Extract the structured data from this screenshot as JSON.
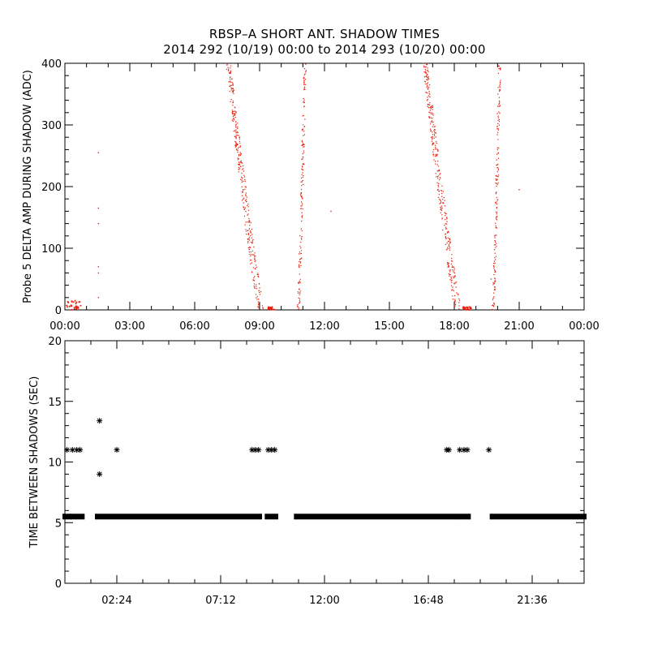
{
  "figure": {
    "title": "RBSP–A SHORT ANT. SHADOW TIMES",
    "subtitle": "2014 292 (10/19) 00:00 to 2014 293 (10/20) 00:00",
    "colors": {
      "background": "#ffffff",
      "axes": "#000000",
      "points_top": "#e8220f",
      "points_bottom": "#000000"
    }
  },
  "chart_data": [
    {
      "type": "scatter",
      "ylabel": "Probe 5 DELTA AMP DURING SHADOW (ADC)",
      "xlim": [
        0,
        24
      ],
      "ylim": [
        0,
        400
      ],
      "yticks": [
        "0",
        "100",
        "200",
        "300",
        "400"
      ],
      "xticks": [
        "00:00",
        "03:00",
        "06:00",
        "09:00",
        "12:00",
        "15:00",
        "18:00",
        "21:00",
        "00:00"
      ],
      "marker": "dot",
      "color": "#e8220f",
      "clusters": [
        {
          "desc": "near-zero early",
          "x": [
            0.0,
            0.75
          ],
          "y": [
            0,
            15
          ]
        },
        {
          "desc": "isolated",
          "points": [
            [
              1.55,
              255
            ],
            [
              1.55,
              165
            ],
            [
              1.55,
              140
            ],
            [
              1.55,
              70
            ],
            [
              1.55,
              60
            ],
            [
              1.55,
              20
            ]
          ]
        },
        {
          "desc": "descending branch",
          "x_at_400": 7.5,
          "x_at_0": 9.0
        },
        {
          "desc": "upper branch",
          "x_at_400": 7.6,
          "x_at_0": 9.2
        },
        {
          "desc": "near-zero",
          "x": [
            9.4,
            9.7
          ],
          "y": [
            0,
            5
          ]
        },
        {
          "desc": "rising branch",
          "x_at_0": 10.8,
          "x_at_400": 11.1
        },
        {
          "desc": "descending branch",
          "x_at_400": 16.6,
          "x_at_0": 18.1
        },
        {
          "desc": "upper branch",
          "x_at_400": 16.7,
          "x_at_0": 18.3
        },
        {
          "desc": "near-zero",
          "x": [
            18.4,
            18.8
          ],
          "y": [
            0,
            5
          ]
        },
        {
          "desc": "rising branch",
          "x_at_0": 19.8,
          "x_at_400": 20.1
        },
        {
          "desc": "isolated",
          "points": [
            [
              12.3,
              160
            ],
            [
              21.0,
              195
            ],
            [
              19.7,
              50
            ]
          ]
        }
      ]
    },
    {
      "type": "scatter",
      "ylabel": "TIME BETWEEN SHADOWS (SEC)",
      "xlim": [
        0,
        24
      ],
      "ylim": [
        0,
        20
      ],
      "yticks": [
        "0",
        "5",
        "10",
        "15",
        "20"
      ],
      "xticks": [
        "02:24",
        "07:12",
        "12:00",
        "16:48",
        "21:36"
      ],
      "marker": "asterisk",
      "color": "#000000",
      "baseline_value": 5.5,
      "baseline_segments": [
        [
          0.0,
          0.2
        ],
        [
          0.35,
          0.8
        ],
        [
          1.5,
          9.0
        ],
        [
          9.35,
          9.75
        ],
        [
          10.7,
          18.0
        ],
        [
          18.2,
          18.65
        ],
        [
          19.75,
          24.0
        ]
      ],
      "points": [
        [
          0.1,
          11
        ],
        [
          0.35,
          11
        ],
        [
          0.55,
          11
        ],
        [
          0.7,
          11
        ],
        [
          1.6,
          13.4
        ],
        [
          1.6,
          9.0
        ],
        [
          2.4,
          11
        ],
        [
          8.65,
          11
        ],
        [
          8.8,
          11
        ],
        [
          8.95,
          11
        ],
        [
          9.4,
          11
        ],
        [
          9.55,
          11
        ],
        [
          9.7,
          11
        ],
        [
          17.65,
          11
        ],
        [
          17.75,
          11
        ],
        [
          18.25,
          11
        ],
        [
          18.45,
          11
        ],
        [
          18.6,
          11
        ],
        [
          19.6,
          11
        ]
      ]
    }
  ]
}
